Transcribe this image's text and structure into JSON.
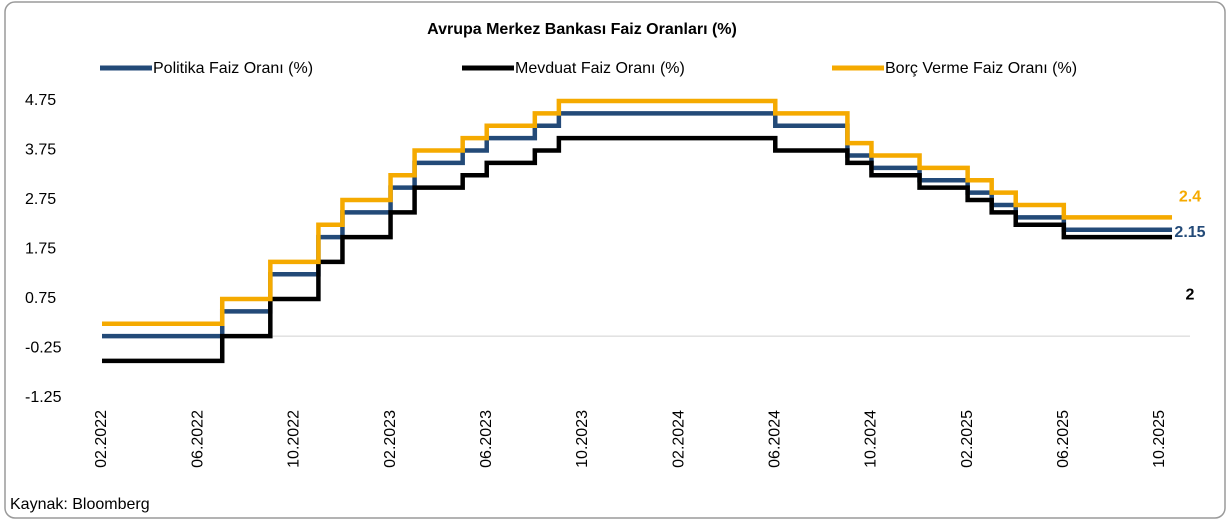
{
  "chart_data": {
    "type": "step-line",
    "title": "Avrupa Merkez Bankası Faiz Oranları (%)",
    "source": "Kaynak: Bloomberg",
    "categories": [
      "02.2022",
      null,
      null,
      null,
      "06.2022",
      null,
      null,
      null,
      "10.2022",
      null,
      null,
      null,
      "02.2023",
      null,
      null,
      null,
      "06.2023",
      null,
      null,
      null,
      "10.2023",
      null,
      null,
      null,
      "02.2024",
      null,
      null,
      null,
      "06.2024",
      null,
      null,
      null,
      "10.2024",
      null,
      null,
      null,
      "02.2025",
      null,
      null,
      null,
      "06.2025",
      null,
      null,
      null,
      "10.2025"
    ],
    "ylim": [
      -1.25,
      4.75
    ],
    "yticks": [
      4.75,
      3.75,
      2.75,
      1.75,
      0.75,
      -0.25,
      -1.25
    ],
    "series": [
      {
        "name": "Politika Faiz Oranı (%)",
        "color": "#234a78",
        "end_label": "2.15",
        "values": [
          0,
          0,
          0,
          0,
          0,
          0.5,
          0.5,
          1.25,
          1.25,
          2.0,
          2.5,
          2.5,
          3.0,
          3.5,
          3.5,
          3.75,
          4.0,
          4.0,
          4.25,
          4.5,
          4.5,
          4.5,
          4.5,
          4.5,
          4.5,
          4.5,
          4.5,
          4.5,
          4.25,
          4.25,
          4.25,
          3.65,
          3.4,
          3.4,
          3.15,
          3.15,
          2.9,
          2.65,
          2.4,
          2.4,
          2.15,
          2.15,
          2.15,
          2.15,
          2.15
        ]
      },
      {
        "name": "Mevduat Faiz Oranı (%)",
        "color": "#000000",
        "end_label": "2",
        "values": [
          -0.5,
          -0.5,
          -0.5,
          -0.5,
          -0.5,
          0,
          0,
          0.75,
          0.75,
          1.5,
          2.0,
          2.0,
          2.5,
          3.0,
          3.0,
          3.25,
          3.5,
          3.5,
          3.75,
          4.0,
          4.0,
          4.0,
          4.0,
          4.0,
          4.0,
          4.0,
          4.0,
          4.0,
          3.75,
          3.75,
          3.75,
          3.5,
          3.25,
          3.25,
          3.0,
          3.0,
          2.75,
          2.5,
          2.25,
          2.25,
          2.0,
          2.0,
          2.0,
          2.0,
          2.0
        ]
      },
      {
        "name": "Borç Verme Faiz Oranı (%)",
        "color": "#f5aa00",
        "end_label": "2.4",
        "values": [
          0.25,
          0.25,
          0.25,
          0.25,
          0.25,
          0.75,
          0.75,
          1.5,
          1.5,
          2.25,
          2.75,
          2.75,
          3.25,
          3.75,
          3.75,
          4.0,
          4.25,
          4.25,
          4.5,
          4.75,
          4.75,
          4.75,
          4.75,
          4.75,
          4.75,
          4.75,
          4.75,
          4.75,
          4.5,
          4.5,
          4.5,
          3.9,
          3.65,
          3.65,
          3.4,
          3.4,
          3.15,
          2.9,
          2.65,
          2.65,
          2.4,
          2.4,
          2.4,
          2.4,
          2.4
        ]
      }
    ]
  }
}
